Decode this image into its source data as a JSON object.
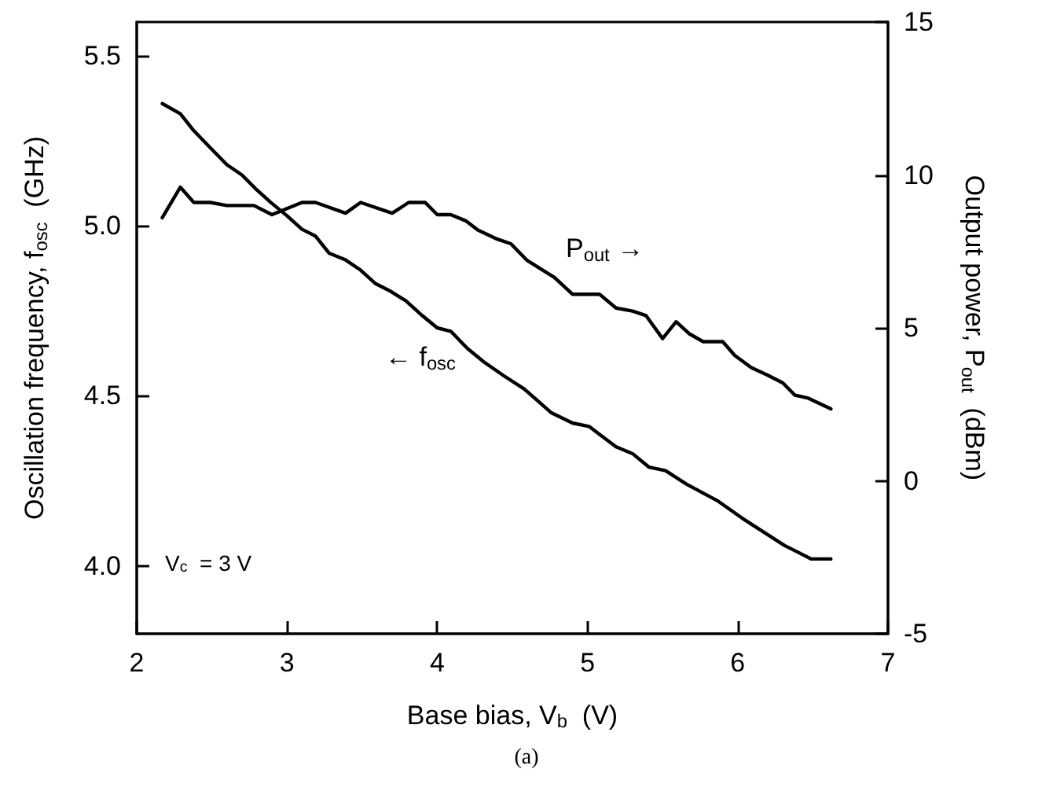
{
  "chart_data": {
    "type": "line",
    "xlabel": "Base bias, V$_{b}$  (V)",
    "ylabel": "Oscillation frequency, f$_{osc}$  (GHz)",
    "y2label": "Output power, P$_{out}$  (dBm)",
    "xlim": [
      2,
      7
    ],
    "xticks": [
      2,
      3,
      4,
      5,
      6,
      7
    ],
    "ylim": [
      3.8,
      5.6
    ],
    "yticks": [
      {
        "value": 4.0,
        "label": "4.0"
      },
      4.5,
      {
        "value": 5.0,
        "label": "5.0"
      },
      5.5
    ],
    "y2lim": [
      -5,
      15
    ],
    "y2ticks": [
      -5,
      0,
      5,
      10,
      15
    ],
    "grid": false,
    "marker": "none",
    "line_style": "solid",
    "series": [
      {
        "color": "#000000",
        "x": [
          2.17,
          2.29,
          2.38,
          2.49,
          2.6,
          2.7,
          2.79,
          2.89,
          3.0,
          3.1,
          3.19,
          3.28,
          3.39,
          3.49,
          3.59,
          3.68,
          3.79,
          3.89,
          4.0,
          4.09,
          4.2,
          4.31,
          4.44,
          4.58,
          4.76,
          4.9,
          5.01,
          5.19,
          5.3,
          5.41,
          5.52,
          5.66,
          5.87,
          6.03,
          6.17,
          6.31,
          6.49,
          6.62
        ],
        "values": [
          5.36,
          5.33,
          5.28,
          5.23,
          5.18,
          5.15,
          5.11,
          5.07,
          5.03,
          4.99,
          4.97,
          4.92,
          4.9,
          4.87,
          4.83,
          4.81,
          4.78,
          4.74,
          4.7,
          4.69,
          4.64,
          4.6,
          4.56,
          4.52,
          4.45,
          4.42,
          4.41,
          4.35,
          4.33,
          4.29,
          4.28,
          4.24,
          4.19,
          4.14,
          4.1,
          4.06,
          4.02,
          4.02
        ]
      },
      {
        "color": "#000000",
        "axis": "y2",
        "x": [
          2.17,
          2.29,
          2.38,
          2.49,
          2.6,
          2.78,
          2.9,
          3.0,
          3.1,
          3.19,
          3.39,
          3.49,
          3.7,
          3.81,
          3.92,
          4.0,
          4.09,
          4.19,
          4.27,
          4.4,
          4.49,
          4.6,
          4.78,
          4.9,
          5.0,
          5.08,
          5.19,
          5.3,
          5.39,
          5.5,
          5.59,
          5.68,
          5.77,
          5.9,
          5.98,
          6.09,
          6.2,
          6.3,
          6.38,
          6.47,
          6.62
        ],
        "values": [
          8.6,
          9.6,
          9.1,
          9.1,
          9.0,
          9.0,
          8.7,
          8.9,
          9.1,
          9.1,
          8.75,
          9.1,
          8.75,
          9.1,
          9.1,
          8.7,
          8.7,
          8.5,
          8.2,
          7.9,
          7.75,
          7.2,
          6.65,
          6.1,
          6.1,
          6.1,
          5.65,
          5.55,
          5.4,
          4.65,
          5.2,
          4.8,
          4.55,
          4.55,
          4.1,
          3.7,
          3.45,
          3.2,
          2.8,
          2.7,
          2.35
        ]
      }
    ],
    "annotations": [
      "← f$_{osc}$",
      "P$_{out}$ →",
      "V$_{c}$  = 3 V",
      "(a)"
    ]
  }
}
